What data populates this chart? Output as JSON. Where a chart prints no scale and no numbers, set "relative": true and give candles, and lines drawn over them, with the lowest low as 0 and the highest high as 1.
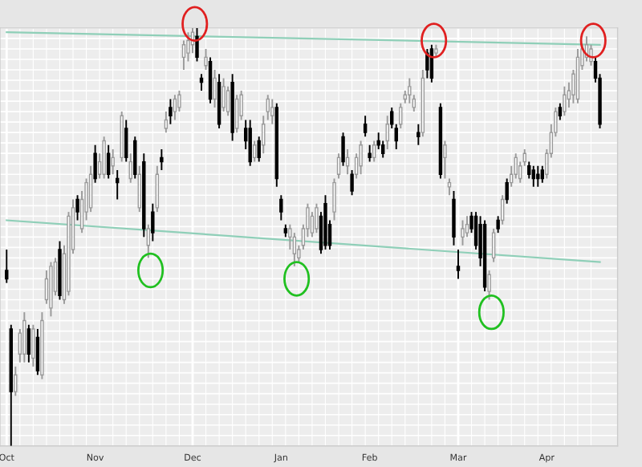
{
  "chart_data": {
    "type": "candlestick",
    "relative": true,
    "grid": true,
    "categories": [
      "Oct",
      null,
      null,
      null,
      null,
      null,
      null,
      null,
      null,
      null,
      null,
      null,
      null,
      null,
      null,
      null,
      null,
      null,
      null,
      null,
      "Nov",
      null,
      null,
      null,
      null,
      null,
      null,
      null,
      null,
      null,
      null,
      null,
      null,
      null,
      null,
      null,
      null,
      null,
      null,
      null,
      null,
      null,
      "Dec",
      null,
      null,
      null,
      null,
      null,
      null,
      null,
      null,
      null,
      null,
      null,
      null,
      null,
      null,
      null,
      null,
      null,
      null,
      null,
      "Jan",
      null,
      null,
      null,
      null,
      null,
      null,
      null,
      null,
      null,
      null,
      null,
      null,
      null,
      null,
      null,
      null,
      null,
      null,
      null,
      "Feb",
      null,
      null,
      null,
      null,
      null,
      null,
      null,
      null,
      null,
      null,
      null,
      null,
      null,
      null,
      null,
      null,
      null,
      null,
      null,
      "Mar",
      null,
      null,
      null,
      null,
      null,
      null,
      null,
      null,
      null,
      null,
      null,
      null,
      null,
      null,
      null,
      null,
      null,
      null,
      null,
      "Apr",
      null,
      null,
      null,
      null,
      null,
      null,
      null,
      null,
      null,
      null,
      null,
      null
    ],
    "ohlc": [
      [
        0.42,
        0.47,
        0.39,
        0.4
      ],
      [
        0.28,
        0.29,
        0,
        0.13
      ],
      [
        0.13,
        0.19,
        0.12,
        0.17
      ],
      [
        0.22,
        0.28,
        0.2,
        0.27
      ],
      [
        0.22,
        0.32,
        0.2,
        0.3
      ],
      [
        0.28,
        0.29,
        0.2,
        0.22
      ],
      [
        0.21,
        0.29,
        0.19,
        0.28
      ],
      [
        0.26,
        0.28,
        0.17,
        0.18
      ],
      [
        0.17,
        0.32,
        0.16,
        0.3
      ],
      [
        0.35,
        0.42,
        0.34,
        0.4
      ],
      [
        0.33,
        0.44,
        0.31,
        0.43
      ],
      [
        0.37,
        0.45,
        0.36,
        0.44
      ],
      [
        0.47,
        0.49,
        0.35,
        0.36
      ],
      [
        0.35,
        0.48,
        0.34,
        0.46
      ],
      [
        0.37,
        0.56,
        0.36,
        0.55
      ],
      [
        0.47,
        0.59,
        0.46,
        0.57
      ],
      [
        0.59,
        0.6,
        0.54,
        0.56
      ],
      [
        0.52,
        0.61,
        0.51,
        0.59
      ],
      [
        0.56,
        0.64,
        0.54,
        0.63
      ],
      [
        0.57,
        0.67,
        0.56,
        0.65
      ],
      [
        0.7,
        0.72,
        0.63,
        0.64
      ],
      [
        0.65,
        0.7,
        0.64,
        0.68
      ],
      [
        0.65,
        0.74,
        0.64,
        0.73
      ],
      [
        0.7,
        0.72,
        0.64,
        0.65
      ],
      [
        0.67,
        0.71,
        0.65,
        0.69
      ],
      [
        0.64,
        0.66,
        0.59,
        0.63
      ],
      [
        0.69,
        0.8,
        0.68,
        0.79
      ],
      [
        0.76,
        0.78,
        0.68,
        0.69
      ],
      [
        0.64,
        0.7,
        0.63,
        0.68
      ],
      [
        0.73,
        0.74,
        0.64,
        0.65
      ],
      [
        0.57,
        0.67,
        0.56,
        0.65
      ],
      [
        0.68,
        0.7,
        0.5,
        0.52
      ],
      [
        0.48,
        0.53,
        0.45,
        0.52
      ],
      [
        0.56,
        0.58,
        0.49,
        0.51
      ],
      [
        0.57,
        0.67,
        0.56,
        0.65
      ],
      [
        0.69,
        0.71,
        0.66,
        0.68
      ],
      [
        0.76,
        0.8,
        0.75,
        0.78
      ],
      [
        0.81,
        0.83,
        0.77,
        0.79
      ],
      [
        0.8,
        0.84,
        0.78,
        0.83
      ],
      [
        0.81,
        0.85,
        0.8,
        0.84
      ],
      [
        0.93,
        0.97,
        0.9,
        0.96
      ],
      [
        0.94,
        0.99,
        0.92,
        0.97
      ],
      [
        0.96,
        1.0,
        0.94,
        0.99
      ],
      [
        0.98,
        1.0,
        0.92,
        0.93
      ],
      [
        0.88,
        0.89,
        0.85,
        0.87
      ],
      [
        0.91,
        0.95,
        0.9,
        0.93
      ],
      [
        0.92,
        0.93,
        0.82,
        0.83
      ],
      [
        0.83,
        0.9,
        0.81,
        0.88
      ],
      [
        0.87,
        0.89,
        0.76,
        0.77
      ],
      [
        0.81,
        0.88,
        0.8,
        0.86
      ],
      [
        0.8,
        0.86,
        0.79,
        0.85
      ],
      [
        0.87,
        0.89,
        0.73,
        0.75
      ],
      [
        0.76,
        0.84,
        0.75,
        0.83
      ],
      [
        0.79,
        0.85,
        0.78,
        0.84
      ],
      [
        0.76,
        0.78,
        0.71,
        0.73
      ],
      [
        0.76,
        0.78,
        0.67,
        0.68
      ],
      [
        0.69,
        0.73,
        0.68,
        0.72
      ],
      [
        0.73,
        0.74,
        0.68,
        0.69
      ],
      [
        0.72,
        0.79,
        0.7,
        0.77
      ],
      [
        0.8,
        0.84,
        0.78,
        0.83
      ],
      [
        0.79,
        0.83,
        0.77,
        0.81
      ],
      [
        0.81,
        0.82,
        0.62,
        0.64
      ],
      [
        0.59,
        0.6,
        0.54,
        0.56
      ],
      [
        0.52,
        0.53,
        0.5,
        0.51
      ],
      [
        0.5,
        0.53,
        0.47,
        0.52
      ],
      [
        0.46,
        0.51,
        0.43,
        0.5
      ],
      [
        0.45,
        0.48,
        0.44,
        0.47
      ],
      [
        0.48,
        0.53,
        0.47,
        0.52
      ],
      [
        0.52,
        0.58,
        0.5,
        0.57
      ],
      [
        0.51,
        0.56,
        0.5,
        0.55
      ],
      [
        0.52,
        0.58,
        0.51,
        0.57
      ],
      [
        0.55,
        0.56,
        0.46,
        0.47
      ],
      [
        0.58,
        0.6,
        0.47,
        0.48
      ],
      [
        0.53,
        0.54,
        0.47,
        0.48
      ],
      [
        0.56,
        0.64,
        0.54,
        0.63
      ],
      [
        0.65,
        0.7,
        0.64,
        0.69
      ],
      [
        0.74,
        0.75,
        0.67,
        0.68
      ],
      [
        0.67,
        0.71,
        0.65,
        0.69
      ],
      [
        0.65,
        0.66,
        0.6,
        0.61
      ],
      [
        0.65,
        0.7,
        0.64,
        0.69
      ],
      [
        0.67,
        0.73,
        0.65,
        0.72
      ],
      [
        0.77,
        0.79,
        0.74,
        0.75
      ],
      [
        0.7,
        0.72,
        0.68,
        0.69
      ],
      [
        0.69,
        0.73,
        0.68,
        0.72
      ],
      [
        0.73,
        0.75,
        0.71,
        0.72
      ],
      [
        0.72,
        0.73,
        0.69,
        0.7
      ],
      [
        0.73,
        0.79,
        0.71,
        0.77
      ],
      [
        0.8,
        0.81,
        0.76,
        0.77
      ],
      [
        0.76,
        0.77,
        0.71,
        0.73
      ],
      [
        0.77,
        0.82,
        0.76,
        0.81
      ],
      [
        0.83,
        0.85,
        0.82,
        0.84
      ],
      [
        0.84,
        0.88,
        0.82,
        0.86
      ],
      [
        0.81,
        0.84,
        0.8,
        0.83
      ],
      [
        0.75,
        0.77,
        0.72,
        0.74
      ],
      [
        0.75,
        0.9,
        0.74,
        0.88
      ],
      [
        0.94,
        0.95,
        0.88,
        0.9
      ],
      [
        0.95,
        0.96,
        0.87,
        0.88
      ],
      [
        0.94,
        0.96,
        0.93,
        0.95
      ],
      [
        0.81,
        0.82,
        0.64,
        0.65
      ],
      [
        0.69,
        0.73,
        0.64,
        0.72
      ],
      [
        0.62,
        0.64,
        0.6,
        0.63
      ],
      [
        0.59,
        0.61,
        0.48,
        0.5
      ],
      [
        0.43,
        0.47,
        0.4,
        0.42
      ],
      [
        0.5,
        0.54,
        0.48,
        0.52
      ],
      [
        0.51,
        0.55,
        0.5,
        0.53
      ],
      [
        0.55,
        0.56,
        0.51,
        0.52
      ],
      [
        0.55,
        0.56,
        0.47,
        0.48
      ],
      [
        0.53,
        0.55,
        0.43,
        0.45
      ],
      [
        0.53,
        0.54,
        0.37,
        0.38
      ],
      [
        0.37,
        0.42,
        0.35,
        0.41
      ],
      [
        0.45,
        0.52,
        0.44,
        0.51
      ],
      [
        0.54,
        0.55,
        0.51,
        0.52
      ],
      [
        0.54,
        0.6,
        0.53,
        0.59
      ],
      [
        0.63,
        0.64,
        0.58,
        0.59
      ],
      [
        0.63,
        0.67,
        0.62,
        0.65
      ],
      [
        0.65,
        0.7,
        0.64,
        0.69
      ],
      [
        0.64,
        0.68,
        0.63,
        0.67
      ],
      [
        0.68,
        0.71,
        0.67,
        0.7
      ],
      [
        0.67,
        0.68,
        0.64,
        0.65
      ],
      [
        0.66,
        0.67,
        0.62,
        0.64
      ],
      [
        0.65,
        0.67,
        0.62,
        0.64
      ],
      [
        0.66,
        0.67,
        0.63,
        0.64
      ],
      [
        0.65,
        0.71,
        0.64,
        0.7
      ],
      [
        0.7,
        0.77,
        0.69,
        0.75
      ],
      [
        0.75,
        0.81,
        0.74,
        0.8
      ],
      [
        0.81,
        0.82,
        0.78,
        0.79
      ],
      [
        0.8,
        0.86,
        0.79,
        0.84
      ],
      [
        0.83,
        0.87,
        0.81,
        0.85
      ],
      [
        0.84,
        0.9,
        0.82,
        0.89
      ],
      [
        0.83,
        0.95,
        0.82,
        0.93
      ],
      [
        0.91,
        0.96,
        0.9,
        0.95
      ],
      [
        0.93,
        0.98,
        0.92,
        0.96
      ],
      [
        0.92,
        0.96,
        0.91,
        0.95
      ],
      [
        0.92,
        0.93,
        0.87,
        0.88
      ],
      [
        0.88,
        0.89,
        0.76,
        0.77
      ]
    ],
    "series": [
      {
        "type": "line",
        "color": "#8fcfb8",
        "values": [
          0.99,
          null,
          null,
          null,
          null,
          null,
          null,
          null,
          null,
          null,
          null,
          null,
          null,
          null,
          null,
          null,
          null,
          null,
          null,
          null,
          null,
          null,
          null,
          null,
          null,
          null,
          null,
          null,
          null,
          null,
          null,
          null,
          null,
          null,
          null,
          null,
          null,
          null,
          null,
          null,
          null,
          null,
          null,
          null,
          null,
          null,
          null,
          null,
          null,
          null,
          null,
          null,
          null,
          null,
          null,
          null,
          null,
          null,
          null,
          null,
          null,
          null,
          null,
          null,
          null,
          null,
          null,
          null,
          null,
          null,
          null,
          null,
          null,
          null,
          null,
          null,
          null,
          null,
          null,
          null,
          null,
          null,
          null,
          null,
          null,
          null,
          null,
          null,
          null,
          null,
          null,
          null,
          null,
          null,
          null,
          null,
          null,
          null,
          null,
          null,
          null,
          null,
          null,
          null,
          null,
          null,
          null,
          null,
          null,
          null,
          null,
          null,
          null,
          null,
          null,
          null,
          null,
          null,
          null,
          null,
          null,
          null,
          null,
          null,
          null,
          null,
          null,
          null,
          null,
          null,
          null,
          null,
          null,
          null,
          0.96
        ]
      },
      {
        "type": "line",
        "color": "#8fcfb8",
        "values": [
          0.54,
          null,
          null,
          null,
          null,
          null,
          null,
          null,
          null,
          null,
          null,
          null,
          null,
          null,
          null,
          null,
          null,
          null,
          null,
          null,
          null,
          null,
          null,
          null,
          null,
          null,
          null,
          null,
          null,
          null,
          null,
          null,
          null,
          null,
          null,
          null,
          null,
          null,
          null,
          null,
          null,
          null,
          null,
          null,
          null,
          null,
          null,
          null,
          null,
          null,
          null,
          null,
          null,
          null,
          null,
          null,
          null,
          null,
          null,
          null,
          null,
          null,
          null,
          null,
          null,
          null,
          null,
          null,
          null,
          null,
          null,
          null,
          null,
          null,
          null,
          null,
          null,
          null,
          null,
          null,
          null,
          null,
          null,
          null,
          null,
          null,
          null,
          null,
          null,
          null,
          null,
          null,
          null,
          null,
          null,
          null,
          null,
          null,
          null,
          null,
          null,
          null,
          null,
          null,
          null,
          null,
          null,
          null,
          null,
          null,
          null,
          null,
          null,
          null,
          null,
          null,
          null,
          null,
          null,
          null,
          null,
          null,
          null,
          null,
          null,
          null,
          null,
          null,
          null,
          null,
          null,
          null,
          null,
          null,
          0.44
        ]
      }
    ]
  }
}
